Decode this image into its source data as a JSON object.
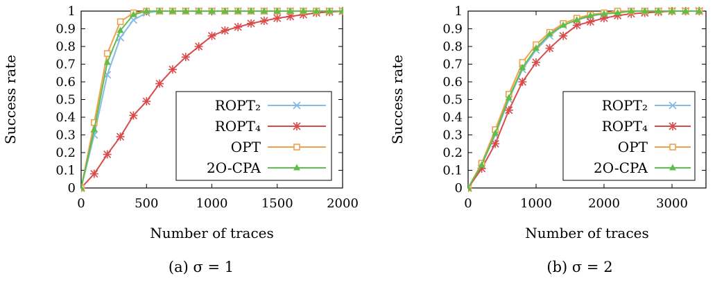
{
  "chart_data": [
    {
      "type": "line",
      "caption": "(a) σ = 1",
      "xlabel": "Number of traces",
      "ylabel": "Success rate",
      "xlim": [
        0,
        2000
      ],
      "ylim": [
        0,
        1
      ],
      "xticks": [
        0,
        500,
        1000,
        1500,
        2000
      ],
      "yticks": [
        0,
        0.1,
        0.2,
        0.3,
        0.4,
        0.5,
        0.6,
        0.7,
        0.8,
        0.9,
        1
      ],
      "ytick_labels": [
        "0",
        "0.1",
        "0.2",
        "0.3",
        "0.4",
        "0.5",
        "0.6",
        "0.7",
        "0.8",
        "0.9",
        "1"
      ],
      "grid": false,
      "legend_position": "bottom-right",
      "series": [
        {
          "name": "ROPT₂",
          "color": "#88b9e6",
          "marker": "x",
          "x": [
            0,
            100,
            200,
            300,
            400,
            500,
            600,
            700,
            800,
            900,
            1000,
            1100,
            1200,
            1300,
            1400,
            1500,
            1600,
            1700,
            1800,
            1900,
            2000
          ],
          "y": [
            0,
            0.3,
            0.64,
            0.85,
            0.95,
            0.99,
            1,
            1,
            1,
            1,
            1,
            1,
            1,
            1,
            1,
            1,
            1,
            1,
            1,
            1,
            1
          ]
        },
        {
          "name": "ROPT₄",
          "color": "#d94a4a",
          "marker": "star",
          "x": [
            0,
            100,
            200,
            300,
            400,
            500,
            600,
            700,
            800,
            900,
            1000,
            1100,
            1200,
            1300,
            1400,
            1500,
            1600,
            1700,
            1800,
            1900,
            2000
          ],
          "y": [
            0,
            0.08,
            0.19,
            0.29,
            0.41,
            0.49,
            0.59,
            0.67,
            0.74,
            0.8,
            0.86,
            0.89,
            0.91,
            0.93,
            0.945,
            0.96,
            0.97,
            0.98,
            0.99,
            0.995,
            1
          ]
        },
        {
          "name": "OPT",
          "color": "#f0a04a",
          "marker": "square",
          "x": [
            0,
            100,
            200,
            300,
            400,
            500,
            600,
            700,
            800,
            900,
            1000,
            1100,
            1200,
            1300,
            1400,
            1500,
            1600,
            1700,
            1800,
            1900,
            2000
          ],
          "y": [
            0,
            0.37,
            0.76,
            0.94,
            0.99,
            1,
            1,
            1,
            1,
            1,
            1,
            1,
            1,
            1,
            1,
            1,
            1,
            1,
            1,
            1,
            1
          ]
        },
        {
          "name": "2O-CPA",
          "color": "#5cbf4a",
          "marker": "triangle",
          "x": [
            0,
            100,
            200,
            300,
            400,
            500,
            600,
            700,
            800,
            900,
            1000,
            1100,
            1200,
            1300,
            1400,
            1500,
            1600,
            1700,
            1800,
            1900,
            2000
          ],
          "y": [
            0,
            0.33,
            0.71,
            0.89,
            0.98,
            1,
            1,
            1,
            1,
            1,
            1,
            1,
            1,
            1,
            1,
            1,
            1,
            1,
            1,
            1,
            1
          ]
        }
      ]
    },
    {
      "type": "line",
      "caption": "(b) σ = 2",
      "xlabel": "Number of traces",
      "ylabel": "Success rate",
      "xlim": [
        0,
        3500
      ],
      "ylim": [
        0,
        1
      ],
      "xticks": [
        0,
        1000,
        2000,
        3000
      ],
      "yticks": [
        0,
        0.1,
        0.2,
        0.3,
        0.4,
        0.5,
        0.6,
        0.7,
        0.8,
        0.9,
        1
      ],
      "ytick_labels": [
        "0",
        "0.1",
        "0.2",
        "0.3",
        "0.4",
        "0.5",
        "0.6",
        "0.7",
        "0.8",
        "0.9",
        "1"
      ],
      "grid": false,
      "legend_position": "bottom-right",
      "series": [
        {
          "name": "ROPT₂",
          "color": "#88b9e6",
          "marker": "x",
          "x": [
            0,
            200,
            400,
            600,
            800,
            1000,
            1200,
            1400,
            1600,
            1800,
            2000,
            2200,
            2400,
            2600,
            2800,
            3000,
            3200,
            3400
          ],
          "y": [
            0,
            0.13,
            0.3,
            0.5,
            0.67,
            0.78,
            0.86,
            0.92,
            0.95,
            0.97,
            0.985,
            0.99,
            1,
            1,
            1,
            1,
            1,
            1
          ]
        },
        {
          "name": "ROPT₄",
          "color": "#d94a4a",
          "marker": "star",
          "x": [
            0,
            200,
            400,
            600,
            800,
            1000,
            1200,
            1400,
            1600,
            1800,
            2000,
            2200,
            2400,
            2600,
            2800,
            3000,
            3200,
            3400
          ],
          "y": [
            0,
            0.11,
            0.25,
            0.44,
            0.6,
            0.71,
            0.79,
            0.86,
            0.92,
            0.94,
            0.96,
            0.975,
            0.985,
            0.99,
            0.995,
            1,
            1,
            1
          ]
        },
        {
          "name": "OPT",
          "color": "#f0a04a",
          "marker": "square",
          "x": [
            0,
            200,
            400,
            600,
            800,
            1000,
            1200,
            1400,
            1600,
            1800,
            2000,
            2200,
            2400,
            2600,
            2800,
            3000,
            3200,
            3400
          ],
          "y": [
            0,
            0.14,
            0.33,
            0.53,
            0.71,
            0.81,
            0.88,
            0.93,
            0.96,
            0.98,
            0.99,
            1,
            1,
            1,
            1,
            1,
            1,
            1
          ]
        },
        {
          "name": "2O-CPA",
          "color": "#5cbf4a",
          "marker": "triangle",
          "x": [
            0,
            200,
            400,
            600,
            800,
            1000,
            1200,
            1400,
            1600,
            1800,
            2000,
            2200,
            2400,
            2600,
            2800,
            3000,
            3200,
            3400
          ],
          "y": [
            0,
            0.13,
            0.31,
            0.51,
            0.68,
            0.79,
            0.87,
            0.92,
            0.95,
            0.975,
            0.985,
            0.99,
            1,
            1,
            1,
            1,
            1,
            1
          ]
        }
      ]
    }
  ]
}
